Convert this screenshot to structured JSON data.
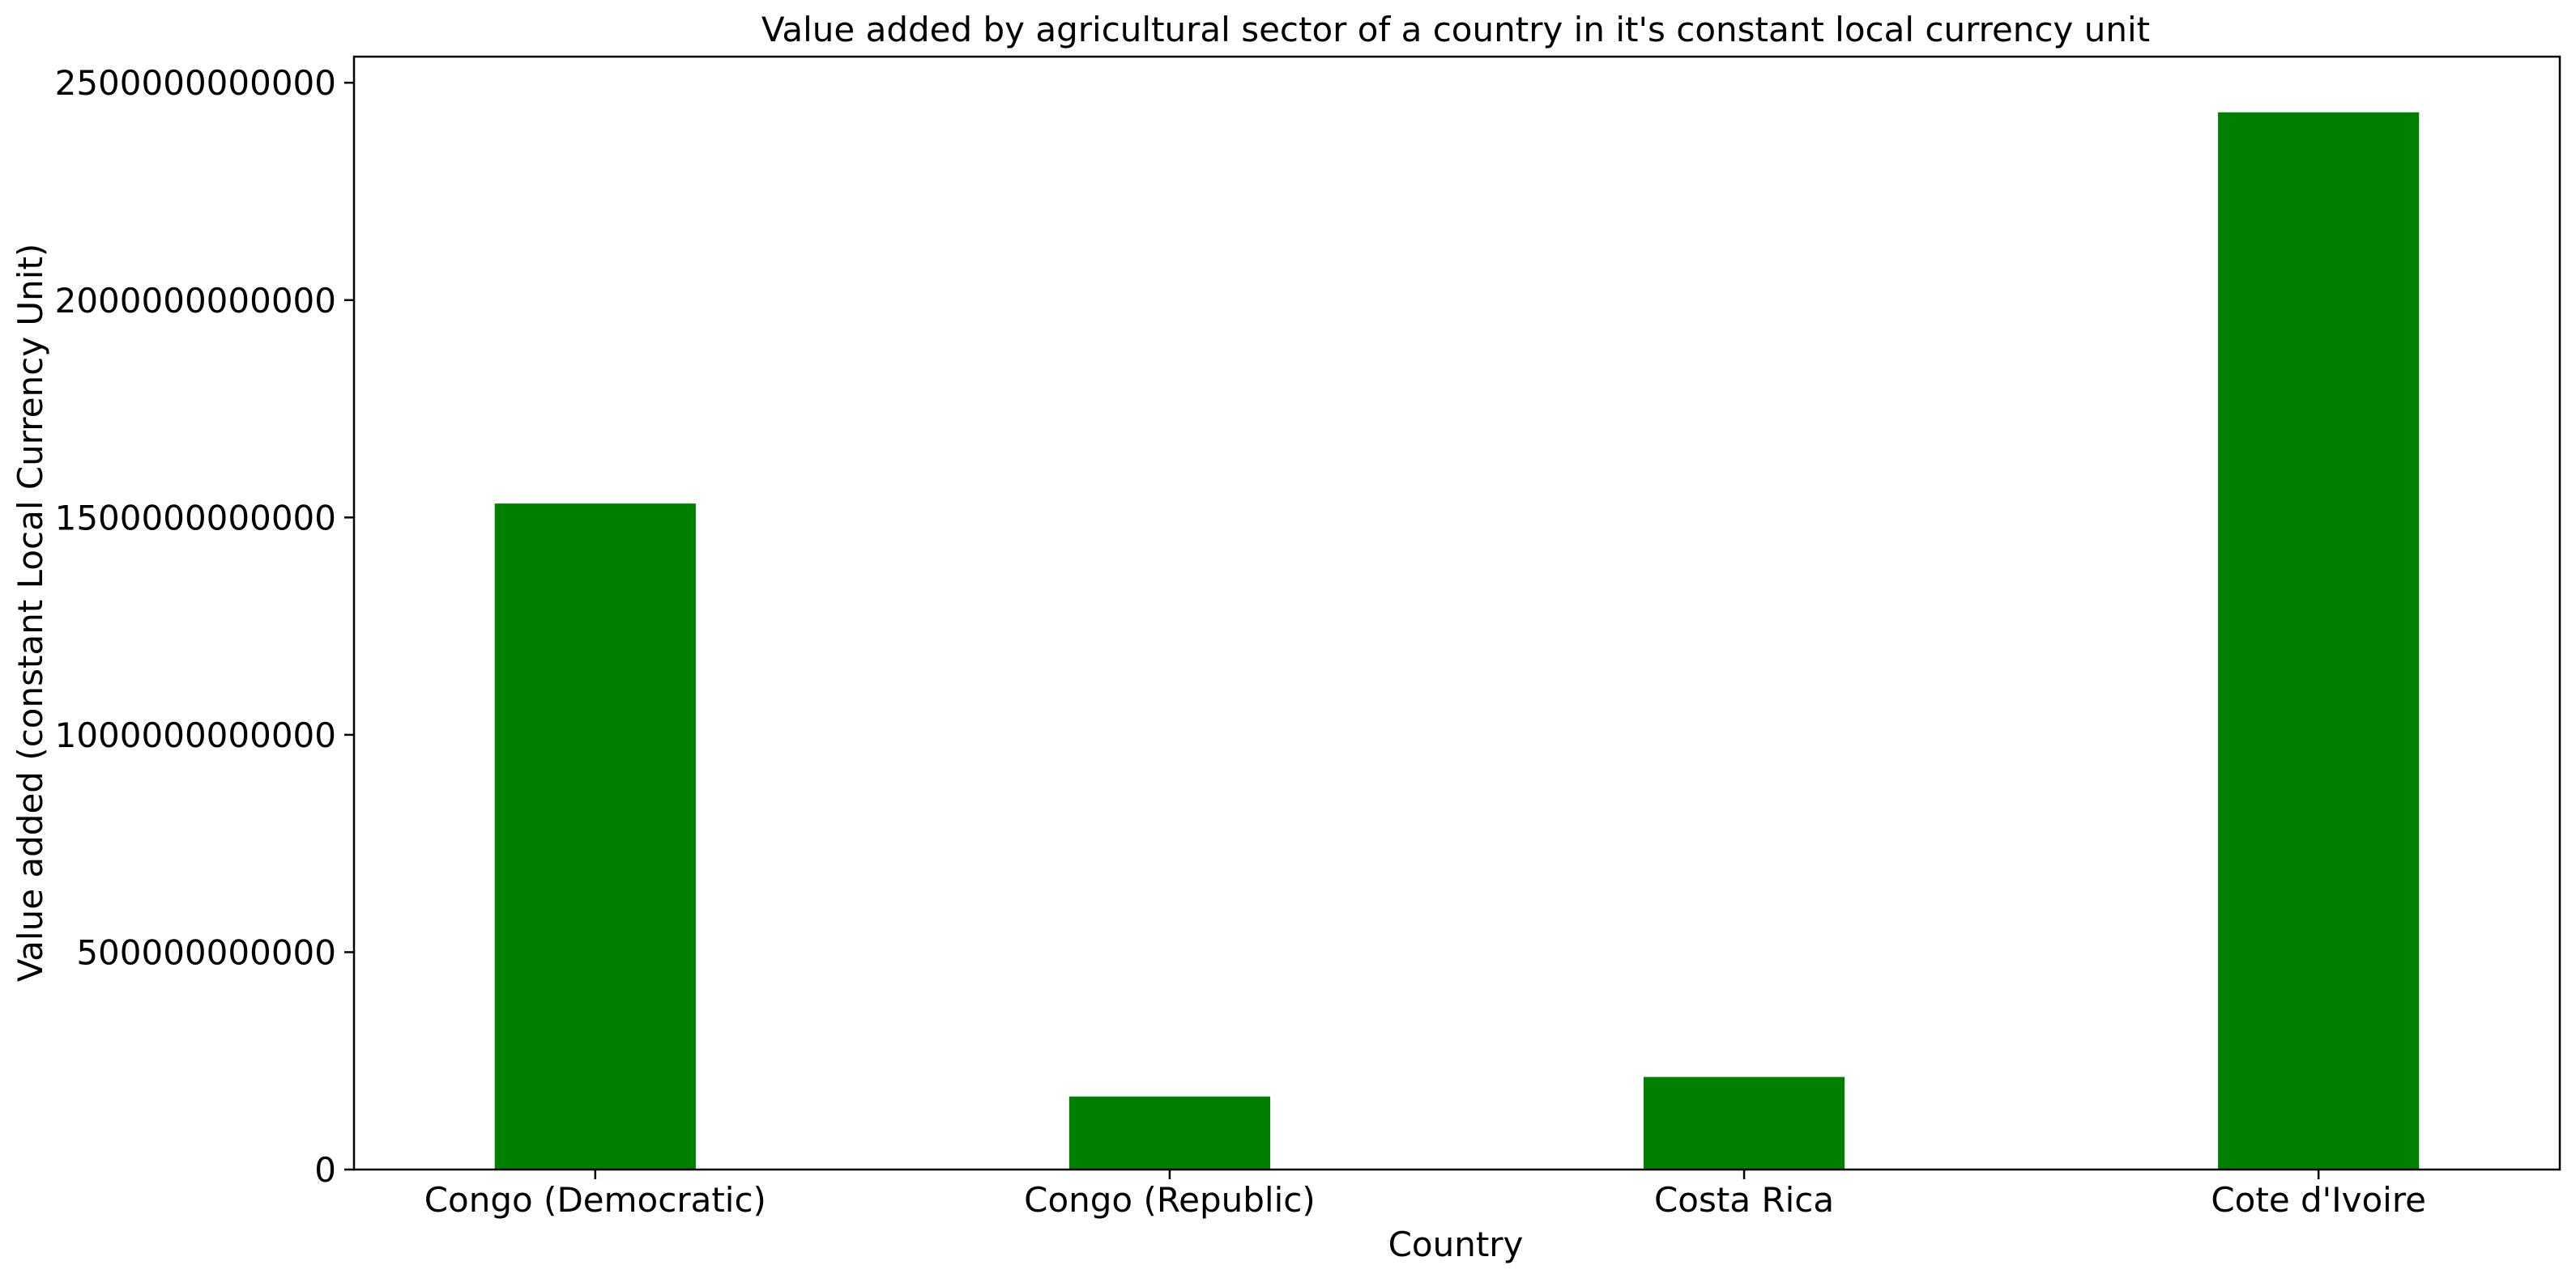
{
  "chart_data": {
    "type": "bar",
    "title": "Value added by agricultural sector of a country in it's constant local currency unit",
    "xlabel": "Country",
    "ylabel": "Value added (constant Local Currency Unit)",
    "categories": [
      "Congo (Democratic)",
      "Congo (Republic)",
      "Costa Rica",
      "Cote d'Ivoire"
    ],
    "values": [
      1532000000000,
      168000000000,
      213000000000,
      2432000000000
    ],
    "ylim": [
      0,
      2560000000000
    ],
    "yticks": [
      0,
      500000000000,
      1000000000000,
      1500000000000,
      2000000000000,
      2500000000000
    ],
    "ytick_labels": [
      "0",
      "500000000000",
      "1000000000000",
      "1500000000000",
      "2000000000000",
      "2500000000000"
    ],
    "bar_color": "#008000",
    "grid": false,
    "legend": "none"
  }
}
